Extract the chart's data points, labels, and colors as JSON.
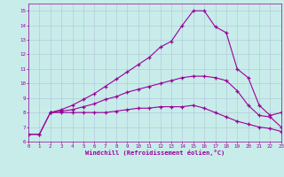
{
  "xlabel": "Windchill (Refroidissement éolien,°C)",
  "bg_color": "#c8ecea",
  "line_color": "#990099",
  "grid_color": "#b0c4d8",
  "xlim": [
    0,
    23
  ],
  "ylim": [
    6,
    15.5
  ],
  "yticks": [
    6,
    7,
    8,
    9,
    10,
    11,
    12,
    13,
    14,
    15
  ],
  "xticks": [
    0,
    1,
    2,
    3,
    4,
    5,
    6,
    7,
    8,
    9,
    10,
    11,
    12,
    13,
    14,
    15,
    16,
    17,
    18,
    19,
    20,
    21,
    22,
    23
  ],
  "s1_x": [
    0,
    1,
    2,
    3,
    4,
    5,
    6,
    7,
    8,
    9,
    10,
    11,
    12,
    13,
    14,
    15,
    16,
    17,
    18,
    19,
    20,
    21,
    22,
    23
  ],
  "s1_y": [
    6.5,
    6.5,
    8.0,
    8.0,
    8.0,
    8.0,
    8.0,
    8.0,
    8.1,
    8.2,
    8.3,
    8.3,
    8.4,
    8.4,
    8.4,
    8.5,
    8.3,
    8.0,
    7.7,
    7.4,
    7.2,
    7.0,
    6.9,
    6.7
  ],
  "s2_x": [
    0,
    1,
    2,
    3,
    4,
    5,
    6,
    7,
    8,
    9,
    10,
    11,
    12,
    13,
    14,
    15,
    16,
    17,
    18,
    19,
    20,
    21,
    22,
    23
  ],
  "s2_y": [
    6.5,
    6.5,
    8.0,
    8.1,
    8.2,
    8.4,
    8.6,
    8.9,
    9.1,
    9.4,
    9.6,
    9.8,
    10.0,
    10.2,
    10.4,
    10.5,
    10.5,
    10.4,
    10.2,
    9.5,
    8.5,
    7.8,
    7.7,
    7.0
  ],
  "s3_x": [
    2,
    3,
    4,
    5,
    6,
    7,
    8,
    9,
    10,
    11,
    12,
    13,
    14,
    15,
    16,
    17,
    18,
    19,
    20,
    21,
    22,
    23
  ],
  "s3_y": [
    8.0,
    8.2,
    8.5,
    8.9,
    9.3,
    9.8,
    10.3,
    10.8,
    11.3,
    11.8,
    12.5,
    12.9,
    14.0,
    15.0,
    15.0,
    13.9,
    13.5,
    11.0,
    10.4,
    8.5,
    7.8,
    8.0
  ]
}
